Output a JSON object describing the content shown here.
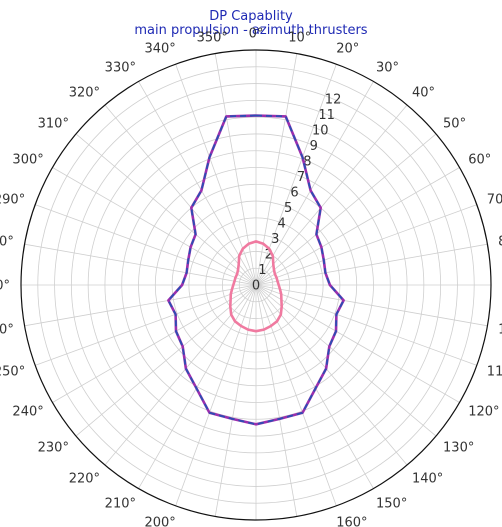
{
  "chart_data": {
    "type": "polar-line",
    "title": "DP Capablity",
    "subtitle": "main propulsion - azimuth thrusters",
    "angle_direction": "clockwise",
    "angle_zero": "top",
    "angle_ticks": [
      "0°",
      "10°",
      "20°",
      "30°",
      "40°",
      "50°",
      "60°",
      "70°",
      "80°",
      "90°",
      "100°",
      "110°",
      "120°",
      "130°",
      "140°",
      "150°",
      "160°",
      "170°",
      "180°",
      "190°",
      "200°",
      "210°",
      "220°",
      "230°",
      "240°",
      "250°",
      "260°",
      "270°",
      "280°",
      "290°",
      "300°",
      "310°",
      "320°",
      "330°",
      "340°",
      "350°"
    ],
    "radial_ticks": [
      "0",
      "1",
      "2",
      "3",
      "4",
      "5",
      "6",
      "7",
      "8",
      "9",
      "10",
      "11",
      "12"
    ],
    "rlim": [
      0,
      14
    ],
    "grid": true,
    "series": [
      {
        "color": "#f07aa0",
        "style": "solid",
        "theta": [
          0,
          10,
          20,
          30,
          40,
          50,
          60,
          70,
          80,
          90,
          100,
          110,
          120,
          130,
          140,
          150,
          160,
          170,
          180,
          190,
          200,
          210,
          220,
          230,
          240,
          250,
          260,
          270,
          280,
          290,
          300,
          310,
          320,
          330,
          340,
          350
        ],
        "r": [
          2.6,
          2.5,
          2.3,
          2.0,
          1.6,
          1.4,
          1.3,
          1.3,
          1.3,
          1.35,
          1.45,
          1.6,
          1.75,
          2.0,
          2.3,
          2.5,
          2.6,
          2.7,
          2.75,
          2.7,
          2.6,
          2.5,
          2.3,
          2.0,
          1.75,
          1.6,
          1.45,
          1.35,
          1.3,
          1.3,
          1.3,
          1.4,
          1.6,
          2.0,
          2.3,
          2.5
        ]
      },
      {
        "color": "#9b2fae",
        "style": "solid",
        "theta": [
          0,
          10,
          20,
          30,
          40,
          50,
          60,
          70,
          80,
          90,
          100,
          110,
          120,
          130,
          140,
          150,
          160,
          170,
          180,
          190,
          200,
          210,
          220,
          230,
          240,
          250,
          260,
          270,
          280,
          290,
          300,
          310,
          320,
          330,
          340,
          350
        ],
        "r": [
          10.1,
          10.2,
          8.1,
          6.5,
          6.0,
          4.7,
          4.5,
          4.3,
          4.2,
          4.4,
          5.3,
          5.1,
          5.5,
          5.7,
          6.5,
          7.1,
          8.1,
          8.1,
          8.3,
          8.1,
          8.1,
          7.1,
          6.5,
          5.7,
          5.5,
          5.1,
          5.3,
          4.4,
          4.2,
          4.3,
          4.5,
          4.7,
          6.0,
          6.5,
          8.1,
          10.2
        ]
      },
      {
        "color": "#2b4fb3",
        "style": "dashed",
        "theta": [
          0,
          10,
          20,
          30,
          40,
          50,
          60,
          70,
          80,
          90,
          100,
          110,
          120,
          130,
          140,
          150,
          160,
          170,
          180,
          190,
          200,
          210,
          220,
          230,
          240,
          250,
          260,
          270,
          280,
          290,
          300,
          310,
          320,
          330,
          340,
          350
        ],
        "r": [
          10.1,
          10.2,
          8.1,
          6.5,
          6.0,
          4.7,
          4.5,
          4.3,
          4.2,
          4.4,
          5.3,
          5.1,
          5.5,
          5.7,
          6.5,
          7.1,
          8.1,
          8.1,
          8.3,
          8.1,
          8.1,
          7.1,
          6.5,
          5.7,
          5.5,
          5.1,
          5.3,
          4.4,
          4.2,
          4.3,
          4.5,
          4.7,
          6.0,
          6.5,
          8.1,
          10.2
        ]
      }
    ]
  }
}
